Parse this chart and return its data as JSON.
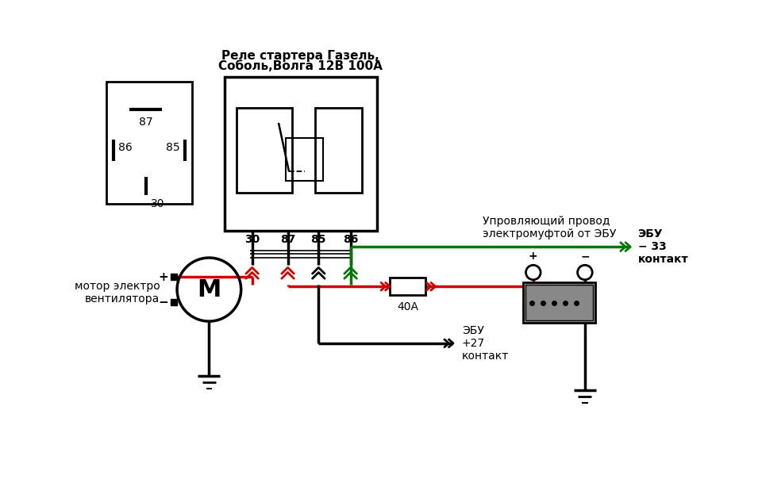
{
  "relay_label_line1": "Реле стартера Газель,",
  "relay_label_line2": "Соболь,Волга 12В 100А",
  "motor_label": "мотор электро\nвентилятора",
  "fuse_label": "40А",
  "battery_label": "ЭБУ\n+27\nконтакт",
  "ebu_label": "ЭБУ\n− 33\nконтакт",
  "green_wire_label": "Упровляющий провод\nэлектромуфтой от ЭБУ",
  "black": "#000000",
  "red": "#cc0000",
  "green": "#007700",
  "gray": "#888888",
  "darkgray": "#555555"
}
